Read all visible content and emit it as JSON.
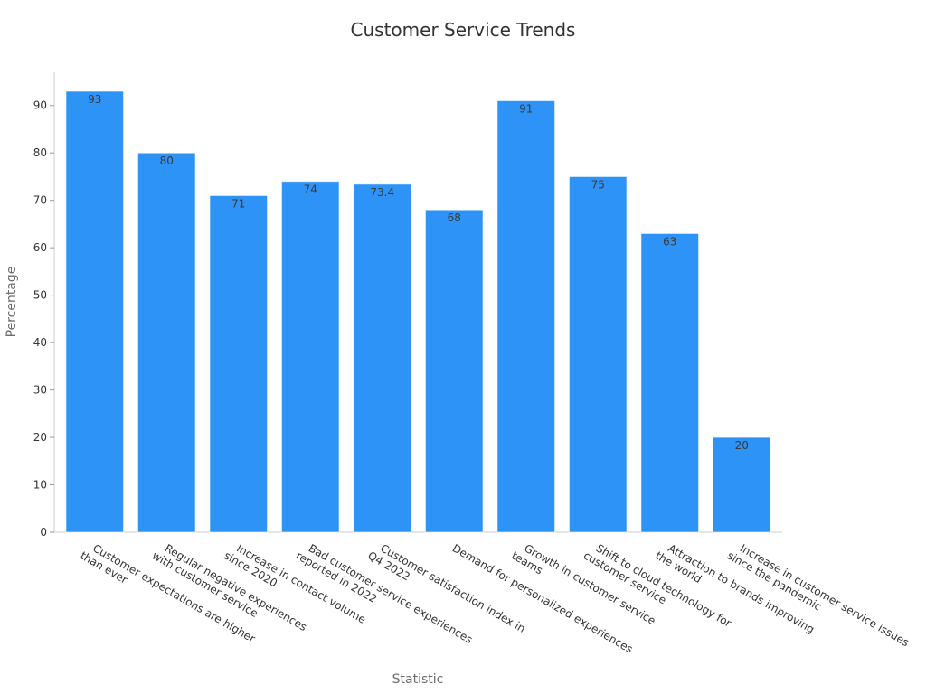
{
  "chart_data": {
    "type": "bar",
    "title": "Customer Service Trends",
    "xlabel": "Statistic",
    "ylabel": "Percentage",
    "ylim": [
      0,
      97
    ],
    "yticks": [
      0,
      10,
      20,
      30,
      40,
      50,
      60,
      70,
      80,
      90
    ],
    "grid": false,
    "legend": "none",
    "bar_color": "#2e93f7",
    "categories": [
      [
        "Customer expectations are higher",
        "than ever"
      ],
      [
        "Regular negative experiences",
        "with customer service"
      ],
      [
        "Increase in contact volume",
        "since 2020"
      ],
      [
        "Bad customer service experiences",
        "reported in 2022"
      ],
      [
        "Customer satisfaction index in",
        "Q4 2022"
      ],
      [
        "Demand for personalized experiences"
      ],
      [
        "Growth in customer service",
        "teams"
      ],
      [
        "Shift to cloud technology for",
        "customer service"
      ],
      [
        "Attraction to brands improving",
        "the world"
      ],
      [
        "Increase in customer service issues",
        "since the pandemic"
      ]
    ],
    "values": [
      93,
      80,
      71,
      74,
      73.4,
      68,
      91,
      75,
      63,
      20
    ],
    "data_labels": [
      "93",
      "80",
      "71",
      "74",
      "73.4",
      "68",
      "91",
      "75",
      "63",
      "20"
    ]
  }
}
